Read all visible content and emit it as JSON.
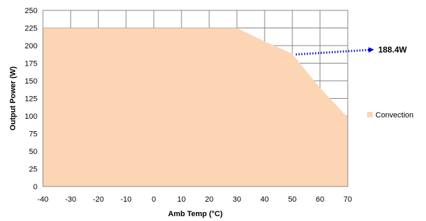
{
  "chart_data": {
    "type": "area",
    "title": "",
    "xlabel": "Amb Temp (°C)",
    "ylabel": "Output Power (W)",
    "xlim": [
      -40,
      70
    ],
    "ylim": [
      0,
      250
    ],
    "x_ticks": [
      -40,
      -30,
      -20,
      -10,
      0,
      10,
      20,
      30,
      40,
      50,
      60,
      70
    ],
    "y_ticks": [
      0,
      25,
      50,
      75,
      100,
      125,
      150,
      175,
      200,
      225,
      250
    ],
    "grid": true,
    "legend_position": "right",
    "series": [
      {
        "name": "Convection",
        "color": "#FCD5B5",
        "x": [
          -40,
          30,
          40,
          50,
          60,
          70
        ],
        "y": [
          225,
          225,
          206,
          188.4,
          140,
          98
        ]
      }
    ],
    "annotations": [
      {
        "text": "188.4W",
        "x": 50,
        "y": 188.4,
        "arrow_style": "dotted",
        "arrow_color": "#0000CC"
      }
    ]
  }
}
